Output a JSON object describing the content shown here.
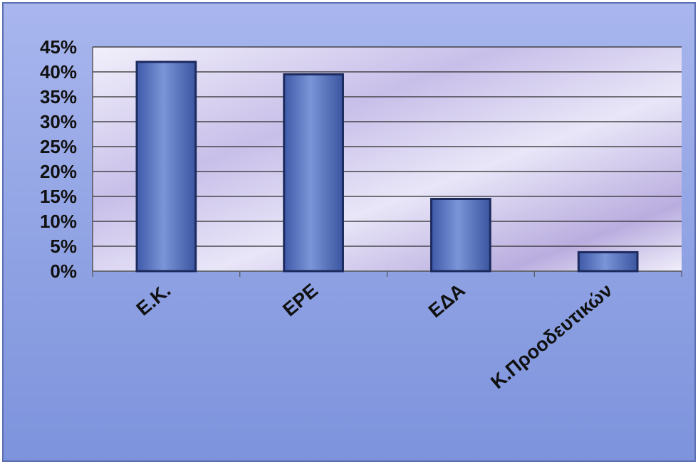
{
  "chart_data": {
    "type": "bar",
    "title": "",
    "xlabel": "",
    "ylabel": "",
    "categories": [
      "Ε.Κ.",
      "ΕΡΕ",
      "ΕΔΑ",
      "Κ.Προοδευτικών"
    ],
    "values": [
      42,
      39.5,
      14.5,
      3.8
    ],
    "y_ticks": [
      "0%",
      "5%",
      "10%",
      "15%",
      "20%",
      "25%",
      "30%",
      "35%",
      "40%",
      "45%"
    ],
    "ylim": [
      0,
      45
    ],
    "y_unit": "%",
    "grid": true,
    "legend": "none",
    "colors": {
      "bar_fill": "#5b78c0",
      "bar_edge": "#1c2a5e",
      "frame_bg": "#8fa3e2",
      "plot_bg": "#d9d3f1",
      "grid": "#2a2a2a"
    }
  }
}
